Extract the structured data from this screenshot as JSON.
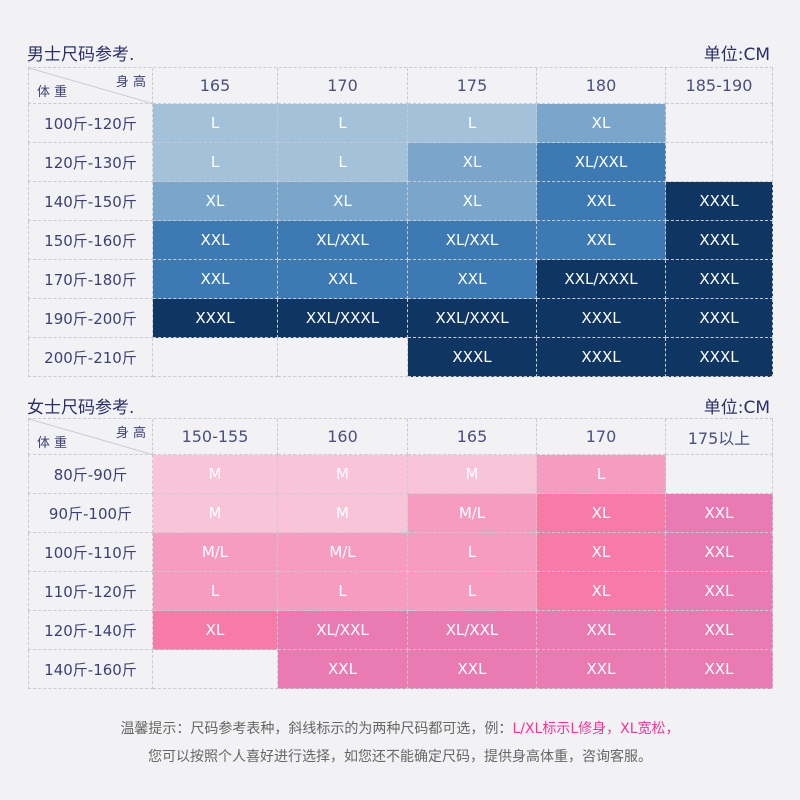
{
  "men": {
    "title": "男士尺码参考.",
    "unit": "单位:CM",
    "corner_height": "身 高",
    "corner_weight": "体 重",
    "heights": [
      "165",
      "170",
      "175",
      "180",
      "185-190"
    ],
    "rows": [
      {
        "weight": "100斤-120斤",
        "sizes": [
          "L",
          "L",
          "L",
          "XL",
          ""
        ],
        "levels": [
          1,
          1,
          1,
          2,
          0
        ]
      },
      {
        "weight": "120斤-130斤",
        "sizes": [
          "L",
          "L",
          "XL",
          "XL/XXL",
          ""
        ],
        "levels": [
          1,
          1,
          2,
          3,
          0
        ]
      },
      {
        "weight": "140斤-150斤",
        "sizes": [
          "XL",
          "XL",
          "XL",
          "XXL",
          "XXXL"
        ],
        "levels": [
          2,
          2,
          2,
          3,
          4
        ]
      },
      {
        "weight": "150斤-160斤",
        "sizes": [
          "XXL",
          "XL/XXL",
          "XL/XXL",
          "XXL",
          "XXXL"
        ],
        "levels": [
          3,
          3,
          3,
          3,
          4
        ]
      },
      {
        "weight": "170斤-180斤",
        "sizes": [
          "XXL",
          "XXL",
          "XXL",
          "XXL/XXXL",
          "XXXL"
        ],
        "levels": [
          3,
          3,
          3,
          4,
          4
        ]
      },
      {
        "weight": "190斤-200斤",
        "sizes": [
          "XXXL",
          "XXL/XXXL",
          "XXL/XXXL",
          "XXXL",
          "XXXL"
        ],
        "levels": [
          4,
          4,
          4,
          4,
          4
        ]
      },
      {
        "weight": "200斤-210斤",
        "sizes": [
          "",
          "",
          "XXXL",
          "XXXL",
          "XXXL"
        ],
        "levels": [
          0,
          0,
          4,
          4,
          4
        ]
      }
    ],
    "colors": [
      "transparent",
      "#a3c1d9",
      "#7aa6cc",
      "#3d7ab3",
      "#0f3563"
    ]
  },
  "women": {
    "title": "女士尺码参考.",
    "unit": "单位:CM",
    "corner_height": "身 高",
    "corner_weight": "体 重",
    "heights": [
      "150-155",
      "160",
      "165",
      "170",
      "175以上"
    ],
    "rows": [
      {
        "weight": "80斤-90斤",
        "sizes": [
          "M",
          "M",
          "M",
          "L",
          ""
        ],
        "levels": [
          1,
          1,
          1,
          2,
          0
        ]
      },
      {
        "weight": "90斤-100斤",
        "sizes": [
          "M",
          "M",
          "M/L",
          "XL",
          "XXL"
        ],
        "levels": [
          1,
          1,
          2,
          3,
          4
        ]
      },
      {
        "weight": "100斤-110斤",
        "sizes": [
          "M/L",
          "M/L",
          "L",
          "XL",
          "XXL"
        ],
        "levels": [
          2,
          2,
          2,
          3,
          4
        ]
      },
      {
        "weight": "110斤-120斤",
        "sizes": [
          "L",
          "L",
          "L",
          "XL",
          "XXL"
        ],
        "levels": [
          2,
          2,
          2,
          3,
          4
        ]
      },
      {
        "weight": "120斤-140斤",
        "sizes": [
          "XL",
          "XL/XXL",
          "XL/XXL",
          "XXL",
          "XXL"
        ],
        "levels": [
          3,
          4,
          4,
          4,
          4
        ]
      },
      {
        "weight": "140斤-160斤",
        "sizes": [
          "",
          "XXL",
          "XXL",
          "XXL",
          "XXL"
        ],
        "levels": [
          0,
          4,
          4,
          4,
          4
        ]
      }
    ],
    "colors": [
      "transparent",
      "#f9c3d8",
      "#f59cc0",
      "#f67ca7",
      "#e97bb2"
    ]
  },
  "note": {
    "line1_prefix": "温馨提示：尺码参考表种，斜线标示的为两种尺码都可选，例：",
    "line1_highlight": "L/XL标示L修身，XL宽松，",
    "line2": "您可以按照个人喜好进行选择，如您还不能确定尺码，提供身高体重，咨询客服。",
    "highlight_color": "#f0359a"
  }
}
